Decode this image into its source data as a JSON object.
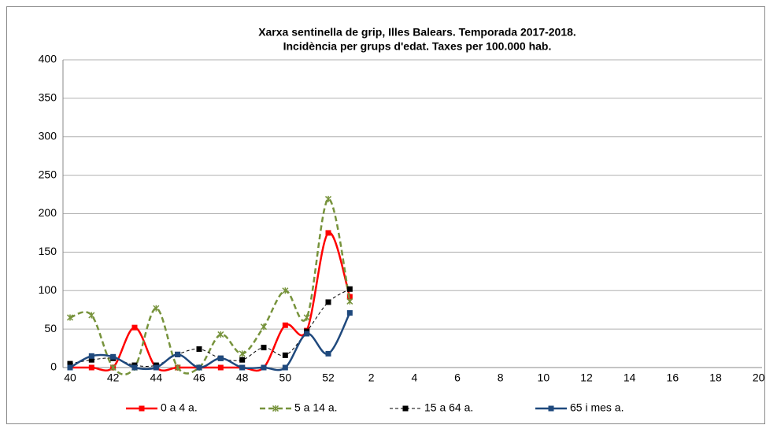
{
  "chart_data": {
    "type": "line",
    "title": [
      "Xarxa sentinella de grip, Illes Balears. Temporada 2017-2018.",
      "Incidència per grups d'edat. Taxes per 100.000 hab."
    ],
    "categories": [
      "40",
      null,
      "42",
      null,
      "44",
      null,
      "46",
      null,
      "48",
      null,
      "50",
      null,
      "52",
      null,
      "2",
      null,
      "4",
      null,
      "6",
      null,
      "8",
      null,
      "10",
      null,
      "12",
      null,
      "14",
      null,
      "16",
      null,
      "18",
      null,
      "20"
    ],
    "series": [
      {
        "name": "0 a 4 a.",
        "color": "#ff0000",
        "dash": false,
        "marker": "square",
        "values": [
          0,
          0,
          0,
          52,
          0,
          0,
          0,
          0,
          0,
          0,
          55,
          48,
          175,
          92,
          null,
          null,
          null,
          null,
          null,
          null,
          null,
          null,
          null,
          null,
          null,
          null,
          null,
          null,
          null,
          null,
          null,
          null,
          null
        ]
      },
      {
        "name": "5 a 14 a.",
        "color": "#77933c",
        "dash": true,
        "marker": "star",
        "values": [
          65,
          68,
          0,
          0,
          77,
          0,
          0,
          43,
          18,
          53,
          100,
          65,
          219,
          86,
          null,
          null,
          null,
          null,
          null,
          null,
          null,
          null,
          null,
          null,
          null,
          null,
          null,
          null,
          null,
          null,
          null,
          null,
          null
        ]
      },
      {
        "name": "15 a 64 a.",
        "color": "#000000",
        "dash": true,
        "marker": "square",
        "values": [
          5,
          10,
          12,
          3,
          3,
          17,
          24,
          12,
          10,
          26,
          16,
          47,
          85,
          102,
          null,
          null,
          null,
          null,
          null,
          null,
          null,
          null,
          null,
          null,
          null,
          null,
          null,
          null,
          null,
          null,
          null,
          null,
          null
        ]
      },
      {
        "name": "65 i mes a.",
        "color": "#1f497d",
        "dash": false,
        "marker": "square",
        "values": [
          0,
          15,
          14,
          0,
          0,
          17,
          0,
          12,
          0,
          0,
          0,
          44,
          18,
          71,
          null,
          null,
          null,
          null,
          null,
          null,
          null,
          null,
          null,
          null,
          null,
          null,
          null,
          null,
          null,
          null,
          null,
          null,
          null
        ]
      }
    ],
    "ylim": [
      0,
      400
    ],
    "yticks": [
      0,
      50,
      100,
      150,
      200,
      250,
      300,
      350,
      400
    ],
    "grid": true,
    "legend": "bottom"
  }
}
